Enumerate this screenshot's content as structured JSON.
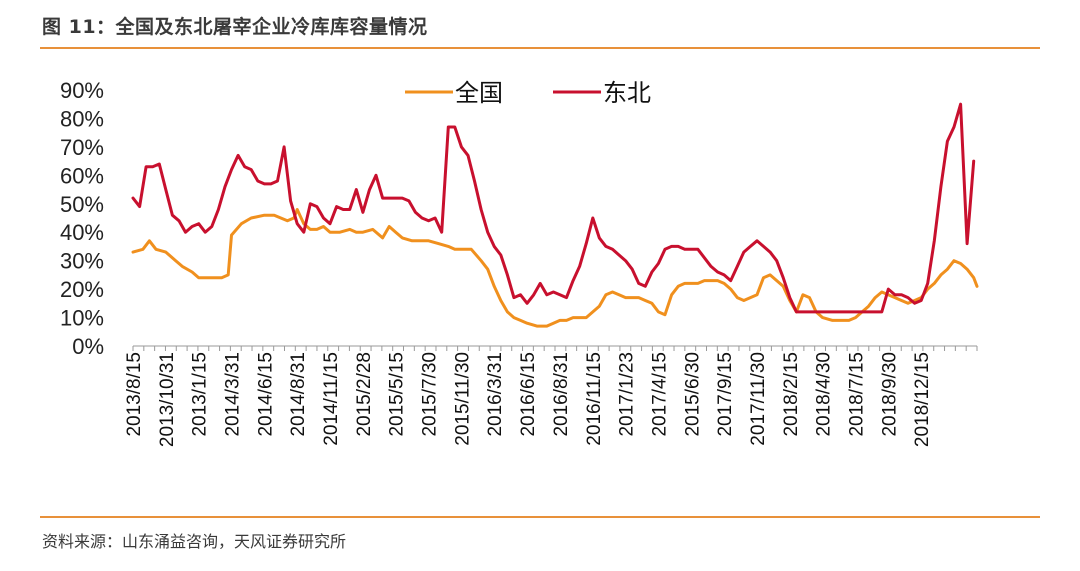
{
  "header": {
    "title": "图 11：全国及东北屠宰企业冷库库容量情况"
  },
  "footer": {
    "source": "资料来源：山东涌益咨询，天风证券研究所"
  },
  "colors": {
    "national": "#f0901e",
    "northeast": "#c8102e",
    "rule": "#e8913a"
  },
  "chart_data": {
    "type": "line",
    "title": "",
    "xlabel": "",
    "ylabel": "",
    "ylim": [
      0,
      90
    ],
    "y_tick_format": "percent",
    "y_ticks": [
      "0%",
      "10%",
      "20%",
      "30%",
      "40%",
      "50%",
      "60%",
      "70%",
      "80%",
      "90%"
    ],
    "x_tick_labels": [
      "2013/8/15",
      "2013/10/31",
      "2013/1/15",
      "2014/3/31",
      "2014/6/15",
      "2014/8/31",
      "2014/11/15",
      "2015/2/28",
      "2015/5/15",
      "2015/7/30",
      "2015/11/30",
      "2016/3/31",
      "2016/6/15",
      "2016/8/31",
      "2016/11/15",
      "2017/1/23",
      "2017/4/15",
      "2015/6/30",
      "2017/9/15",
      "2017/11/30",
      "2018/2/15",
      "2018/4/30",
      "2018/7/15",
      "2018/9/30",
      "2018/12/15"
    ],
    "legend": {
      "position": "top-center"
    },
    "grid": false,
    "series": [
      {
        "name": "全国",
        "color": "#f0901e",
        "points": [
          [
            0,
            33
          ],
          [
            0.3,
            34
          ],
          [
            0.5,
            37
          ],
          [
            0.7,
            34
          ],
          [
            1,
            33
          ],
          [
            1.3,
            30
          ],
          [
            1.5,
            28
          ],
          [
            1.8,
            26
          ],
          [
            2,
            24
          ],
          [
            2.3,
            24
          ],
          [
            2.5,
            24
          ],
          [
            2.7,
            24
          ],
          [
            2.9,
            25
          ],
          [
            3,
            39
          ],
          [
            3.3,
            43
          ],
          [
            3.6,
            45
          ],
          [
            4,
            46
          ],
          [
            4.3,
            46
          ],
          [
            4.5,
            45
          ],
          [
            4.7,
            44
          ],
          [
            4.9,
            45
          ],
          [
            5,
            48
          ],
          [
            5.2,
            43
          ],
          [
            5.4,
            41
          ],
          [
            5.6,
            41
          ],
          [
            5.8,
            42
          ],
          [
            6,
            40
          ],
          [
            6.3,
            40
          ],
          [
            6.6,
            41
          ],
          [
            6.8,
            40
          ],
          [
            7,
            40
          ],
          [
            7.3,
            41
          ],
          [
            7.6,
            38
          ],
          [
            7.8,
            42
          ],
          [
            8,
            40
          ],
          [
            8.2,
            38
          ],
          [
            8.5,
            37
          ],
          [
            8.8,
            37
          ],
          [
            9,
            37
          ],
          [
            9.3,
            36
          ],
          [
            9.6,
            35
          ],
          [
            9.8,
            34
          ],
          [
            10,
            34
          ],
          [
            10.3,
            34
          ],
          [
            10.6,
            30
          ],
          [
            10.8,
            27
          ],
          [
            11,
            21
          ],
          [
            11.2,
            16
          ],
          [
            11.4,
            12
          ],
          [
            11.6,
            10
          ],
          [
            11.8,
            9
          ],
          [
            12,
            8
          ],
          [
            12.3,
            7
          ],
          [
            12.6,
            7
          ],
          [
            12.8,
            8
          ],
          [
            13,
            9
          ],
          [
            13.2,
            9
          ],
          [
            13.4,
            10
          ],
          [
            13.6,
            10
          ],
          [
            13.8,
            10
          ],
          [
            14,
            12
          ],
          [
            14.2,
            14
          ],
          [
            14.4,
            18
          ],
          [
            14.6,
            19
          ],
          [
            14.8,
            18
          ],
          [
            15,
            17
          ],
          [
            15.2,
            17
          ],
          [
            15.4,
            17
          ],
          [
            15.6,
            16
          ],
          [
            15.8,
            15
          ],
          [
            16,
            12
          ],
          [
            16.2,
            11
          ],
          [
            16.4,
            18
          ],
          [
            16.6,
            21
          ],
          [
            16.8,
            22
          ],
          [
            17,
            22
          ],
          [
            17.2,
            22
          ],
          [
            17.4,
            23
          ],
          [
            17.6,
            23
          ],
          [
            17.8,
            23
          ],
          [
            18,
            22
          ],
          [
            18.2,
            20
          ],
          [
            18.4,
            17
          ],
          [
            18.6,
            16
          ],
          [
            18.8,
            17
          ],
          [
            19,
            18
          ],
          [
            19.2,
            24
          ],
          [
            19.4,
            25
          ],
          [
            19.6,
            23
          ],
          [
            19.8,
            21
          ],
          [
            20,
            16
          ],
          [
            20.2,
            12
          ],
          [
            20.4,
            18
          ],
          [
            20.6,
            17
          ],
          [
            20.8,
            12
          ],
          [
            21,
            10
          ],
          [
            21.3,
            9
          ],
          [
            21.6,
            9
          ],
          [
            21.8,
            9
          ],
          [
            22,
            10
          ],
          [
            22.2,
            12
          ],
          [
            22.4,
            14
          ],
          [
            22.6,
            17
          ],
          [
            22.8,
            19
          ],
          [
            23,
            18
          ],
          [
            23.2,
            17
          ],
          [
            23.4,
            16
          ],
          [
            23.6,
            15
          ],
          [
            23.8,
            16
          ],
          [
            24,
            17
          ],
          [
            24.2,
            20
          ],
          [
            24.4,
            22
          ],
          [
            24.6,
            25
          ],
          [
            24.8,
            27
          ],
          [
            25,
            30
          ],
          [
            25.2,
            29
          ],
          [
            25.4,
            27
          ],
          [
            25.6,
            24
          ],
          [
            25.7,
            21
          ]
        ]
      },
      {
        "name": "东北",
        "color": "#c8102e",
        "points": [
          [
            0,
            52
          ],
          [
            0.2,
            49
          ],
          [
            0.4,
            63
          ],
          [
            0.6,
            63
          ],
          [
            0.8,
            64
          ],
          [
            1,
            55
          ],
          [
            1.2,
            46
          ],
          [
            1.4,
            44
          ],
          [
            1.6,
            40
          ],
          [
            1.8,
            42
          ],
          [
            2,
            43
          ],
          [
            2.2,
            40
          ],
          [
            2.4,
            42
          ],
          [
            2.6,
            48
          ],
          [
            2.8,
            56
          ],
          [
            3,
            62
          ],
          [
            3.2,
            67
          ],
          [
            3.4,
            63
          ],
          [
            3.6,
            62
          ],
          [
            3.8,
            58
          ],
          [
            4,
            57
          ],
          [
            4.2,
            57
          ],
          [
            4.4,
            58
          ],
          [
            4.6,
            70
          ],
          [
            4.8,
            51
          ],
          [
            5,
            43
          ],
          [
            5.2,
            40
          ],
          [
            5.4,
            50
          ],
          [
            5.6,
            49
          ],
          [
            5.8,
            45
          ],
          [
            6,
            43
          ],
          [
            6.2,
            49
          ],
          [
            6.4,
            48
          ],
          [
            6.6,
            48
          ],
          [
            6.8,
            55
          ],
          [
            7,
            47
          ],
          [
            7.2,
            55
          ],
          [
            7.4,
            60
          ],
          [
            7.6,
            52
          ],
          [
            7.8,
            52
          ],
          [
            8,
            52
          ],
          [
            8.2,
            52
          ],
          [
            8.4,
            51
          ],
          [
            8.6,
            47
          ],
          [
            8.8,
            45
          ],
          [
            9,
            44
          ],
          [
            9.2,
            45
          ],
          [
            9.4,
            40
          ],
          [
            9.6,
            77
          ],
          [
            9.8,
            77
          ],
          [
            10,
            70
          ],
          [
            10.2,
            67
          ],
          [
            10.4,
            58
          ],
          [
            10.6,
            48
          ],
          [
            10.8,
            40
          ],
          [
            11,
            35
          ],
          [
            11.2,
            32
          ],
          [
            11.4,
            25
          ],
          [
            11.6,
            17
          ],
          [
            11.8,
            18
          ],
          [
            12,
            15
          ],
          [
            12.2,
            18
          ],
          [
            12.4,
            22
          ],
          [
            12.6,
            18
          ],
          [
            12.8,
            19
          ],
          [
            13,
            18
          ],
          [
            13.2,
            17
          ],
          [
            13.4,
            23
          ],
          [
            13.6,
            28
          ],
          [
            13.8,
            36
          ],
          [
            14,
            45
          ],
          [
            14.2,
            38
          ],
          [
            14.4,
            35
          ],
          [
            14.6,
            34
          ],
          [
            14.8,
            32
          ],
          [
            15,
            30
          ],
          [
            15.2,
            27
          ],
          [
            15.4,
            22
          ],
          [
            15.6,
            21
          ],
          [
            15.8,
            26
          ],
          [
            16,
            29
          ],
          [
            16.2,
            34
          ],
          [
            16.4,
            35
          ],
          [
            16.6,
            35
          ],
          [
            16.8,
            34
          ],
          [
            17,
            34
          ],
          [
            17.2,
            34
          ],
          [
            17.4,
            31
          ],
          [
            17.6,
            28
          ],
          [
            17.8,
            26
          ],
          [
            18,
            25
          ],
          [
            18.2,
            23
          ],
          [
            18.4,
            28
          ],
          [
            18.6,
            33
          ],
          [
            18.8,
            35
          ],
          [
            19,
            37
          ],
          [
            19.2,
            35
          ],
          [
            19.4,
            33
          ],
          [
            19.6,
            30
          ],
          [
            19.8,
            24
          ],
          [
            20,
            17
          ],
          [
            20.2,
            12
          ],
          [
            20.5,
            12
          ],
          [
            21,
            12
          ],
          [
            21.5,
            12
          ],
          [
            22,
            12
          ],
          [
            22.4,
            12
          ],
          [
            22.8,
            12
          ],
          [
            23,
            20
          ],
          [
            23.2,
            18
          ],
          [
            23.4,
            18
          ],
          [
            23.6,
            17
          ],
          [
            23.8,
            15
          ],
          [
            24,
            16
          ],
          [
            24.2,
            22
          ],
          [
            24.4,
            37
          ],
          [
            24.6,
            56
          ],
          [
            24.8,
            72
          ],
          [
            25,
            77
          ],
          [
            25.2,
            85
          ],
          [
            25.4,
            36
          ],
          [
            25.6,
            65
          ]
        ]
      }
    ]
  }
}
